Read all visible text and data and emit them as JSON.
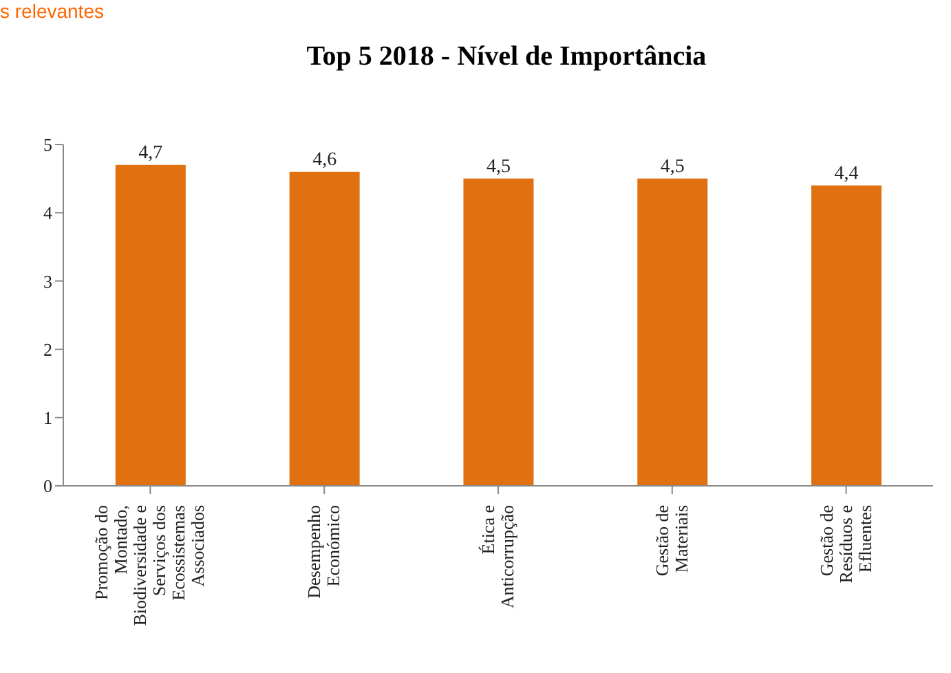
{
  "chart_data": {
    "type": "bar",
    "title": "Top 5 2018 - Nível de Importância",
    "annotations": [
      "s relevantes"
    ],
    "categories": [
      "Promoção do\nMontado,\nBiodiversidade e\nServiços dos\nEcossistemas\nAssociados",
      "Desempenho\nEconómico",
      "Ética e\nAnticorrupção",
      "Gestão de\nMateriais",
      "Gestão de\nResíduos e\nEfluentes"
    ],
    "values": [
      4.7,
      4.6,
      4.5,
      4.5,
      4.4
    ],
    "value_labels": [
      "4,7",
      "4,6",
      "4,5",
      "4,5",
      "4,4"
    ],
    "color": "#e07010",
    "ylim": [
      0,
      5
    ],
    "yticks": [
      0,
      1,
      2,
      3,
      4,
      5
    ],
    "grid": false,
    "legend": false
  }
}
